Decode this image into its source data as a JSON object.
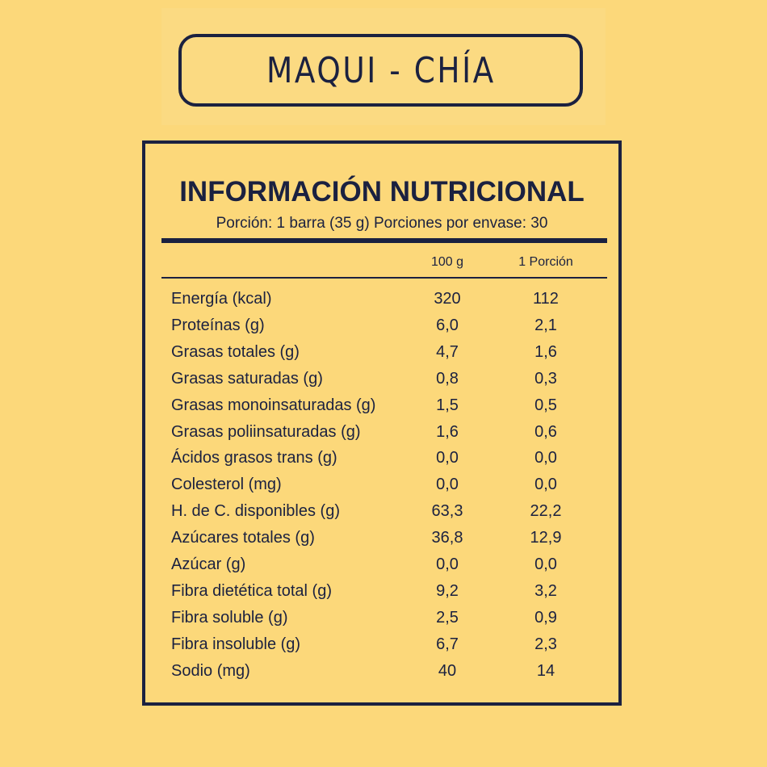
{
  "product_name": "MAQUI - CHÍA",
  "panel": {
    "title": "INFORMACIÓN NUTRICIONAL",
    "serving": "Porción: 1 barra (35 g) Porciones por envase: 30",
    "columns": [
      "100 g",
      "1 Porción"
    ],
    "rows": [
      {
        "label": "Energía (kcal)",
        "per100": "320",
        "perPortion": "112"
      },
      {
        "label": "Proteínas (g)",
        "per100": "6,0",
        "perPortion": "2,1"
      },
      {
        "label": "Grasas totales (g)",
        "per100": "4,7",
        "perPortion": "1,6"
      },
      {
        "label": "Grasas saturadas (g)",
        "per100": "0,8",
        "perPortion": "0,3"
      },
      {
        "label": "Grasas monoinsaturadas (g)",
        "per100": "1,5",
        "perPortion": "0,5"
      },
      {
        "label": "Grasas poliinsaturadas (g)",
        "per100": "1,6",
        "perPortion": "0,6"
      },
      {
        "label": "Ácidos grasos trans (g)",
        "per100": "0,0",
        "perPortion": "0,0"
      },
      {
        "label": "Colesterol (mg)",
        "per100": "0,0",
        "perPortion": "0,0"
      },
      {
        "label": "H. de C. disponibles (g)",
        "per100": "63,3",
        "perPortion": "22,2"
      },
      {
        "label": "Azúcares totales (g)",
        "per100": "36,8",
        "perPortion": "12,9"
      },
      {
        "label": "Azúcar (g)",
        "per100": "0,0",
        "perPortion": "0,0"
      },
      {
        "label": "Fibra dietética total (g)",
        "per100": "9,2",
        "perPortion": "3,2"
      },
      {
        "label": "Fibra soluble (g)",
        "per100": "2,5",
        "perPortion": "0,9"
      },
      {
        "label": "Fibra insoluble (g)",
        "per100": "6,7",
        "perPortion": "2,3"
      },
      {
        "label": "Sodio (mg)",
        "per100": "40",
        "perPortion": "14"
      }
    ]
  },
  "colors": {
    "background": "#fcd87a",
    "ink": "#1b2140"
  }
}
